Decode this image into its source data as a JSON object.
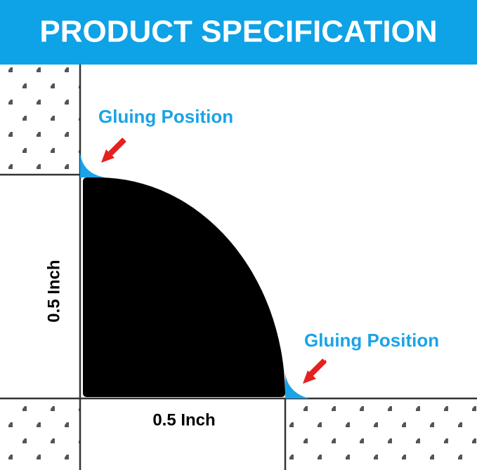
{
  "header": {
    "title": "PRODUCT SPECIFICATION"
  },
  "annotations": {
    "gluing_position_top": "Gluing Position",
    "gluing_position_bottom": "Gluing Position"
  },
  "dimensions": {
    "height": "0.5 Inch",
    "width": "0.5 Inch"
  }
}
